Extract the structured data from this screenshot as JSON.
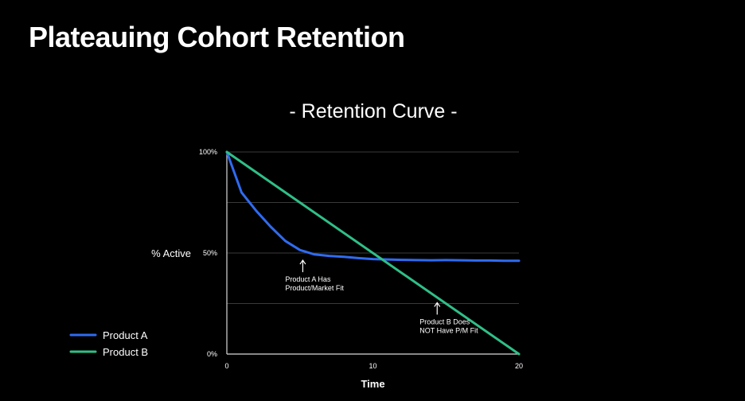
{
  "slide_title": "Plateauing Cohort Retention",
  "chart_data": {
    "type": "line",
    "title": "- Retention Curve -",
    "xlabel": "Time",
    "ylabel": "% Active",
    "xlim": [
      0,
      20
    ],
    "ylim": [
      0,
      100
    ],
    "x_ticks": [
      "0",
      "10",
      "20"
    ],
    "y_ticks": [
      "0%",
      "50%",
      "100%"
    ],
    "grid": "horizontal",
    "legend_position": "bottom-left",
    "series": [
      {
        "name": "Product A",
        "color": "#2f6bf0",
        "points": [
          [
            0,
            100
          ],
          [
            0.5,
            90
          ],
          [
            1,
            80
          ],
          [
            2,
            71
          ],
          [
            3,
            63
          ],
          [
            4,
            56
          ],
          [
            5,
            51.5
          ],
          [
            6,
            49.3
          ],
          [
            7,
            48.6
          ],
          [
            8,
            48.1
          ],
          [
            9,
            47.5
          ],
          [
            10,
            47.0
          ],
          [
            11,
            46.8
          ],
          [
            12,
            46.6
          ],
          [
            13,
            46.5
          ],
          [
            14,
            46.4
          ],
          [
            15,
            46.5
          ],
          [
            16,
            46.4
          ],
          [
            17,
            46.3
          ],
          [
            18,
            46.3
          ],
          [
            19,
            46.2
          ],
          [
            20,
            46.2
          ]
        ]
      },
      {
        "name": "Product B",
        "color": "#2fbf88",
        "points": [
          [
            0,
            100
          ],
          [
            20,
            0
          ]
        ]
      }
    ],
    "annotations": [
      {
        "lines": [
          "Product A Has",
          "Product/Market Fit"
        ],
        "arrow_at": [
          5.2,
          48
        ]
      },
      {
        "lines": [
          "Product B Does",
          "NOT Have P/M Fit"
        ],
        "arrow_at": [
          14.4,
          27
        ]
      }
    ]
  }
}
